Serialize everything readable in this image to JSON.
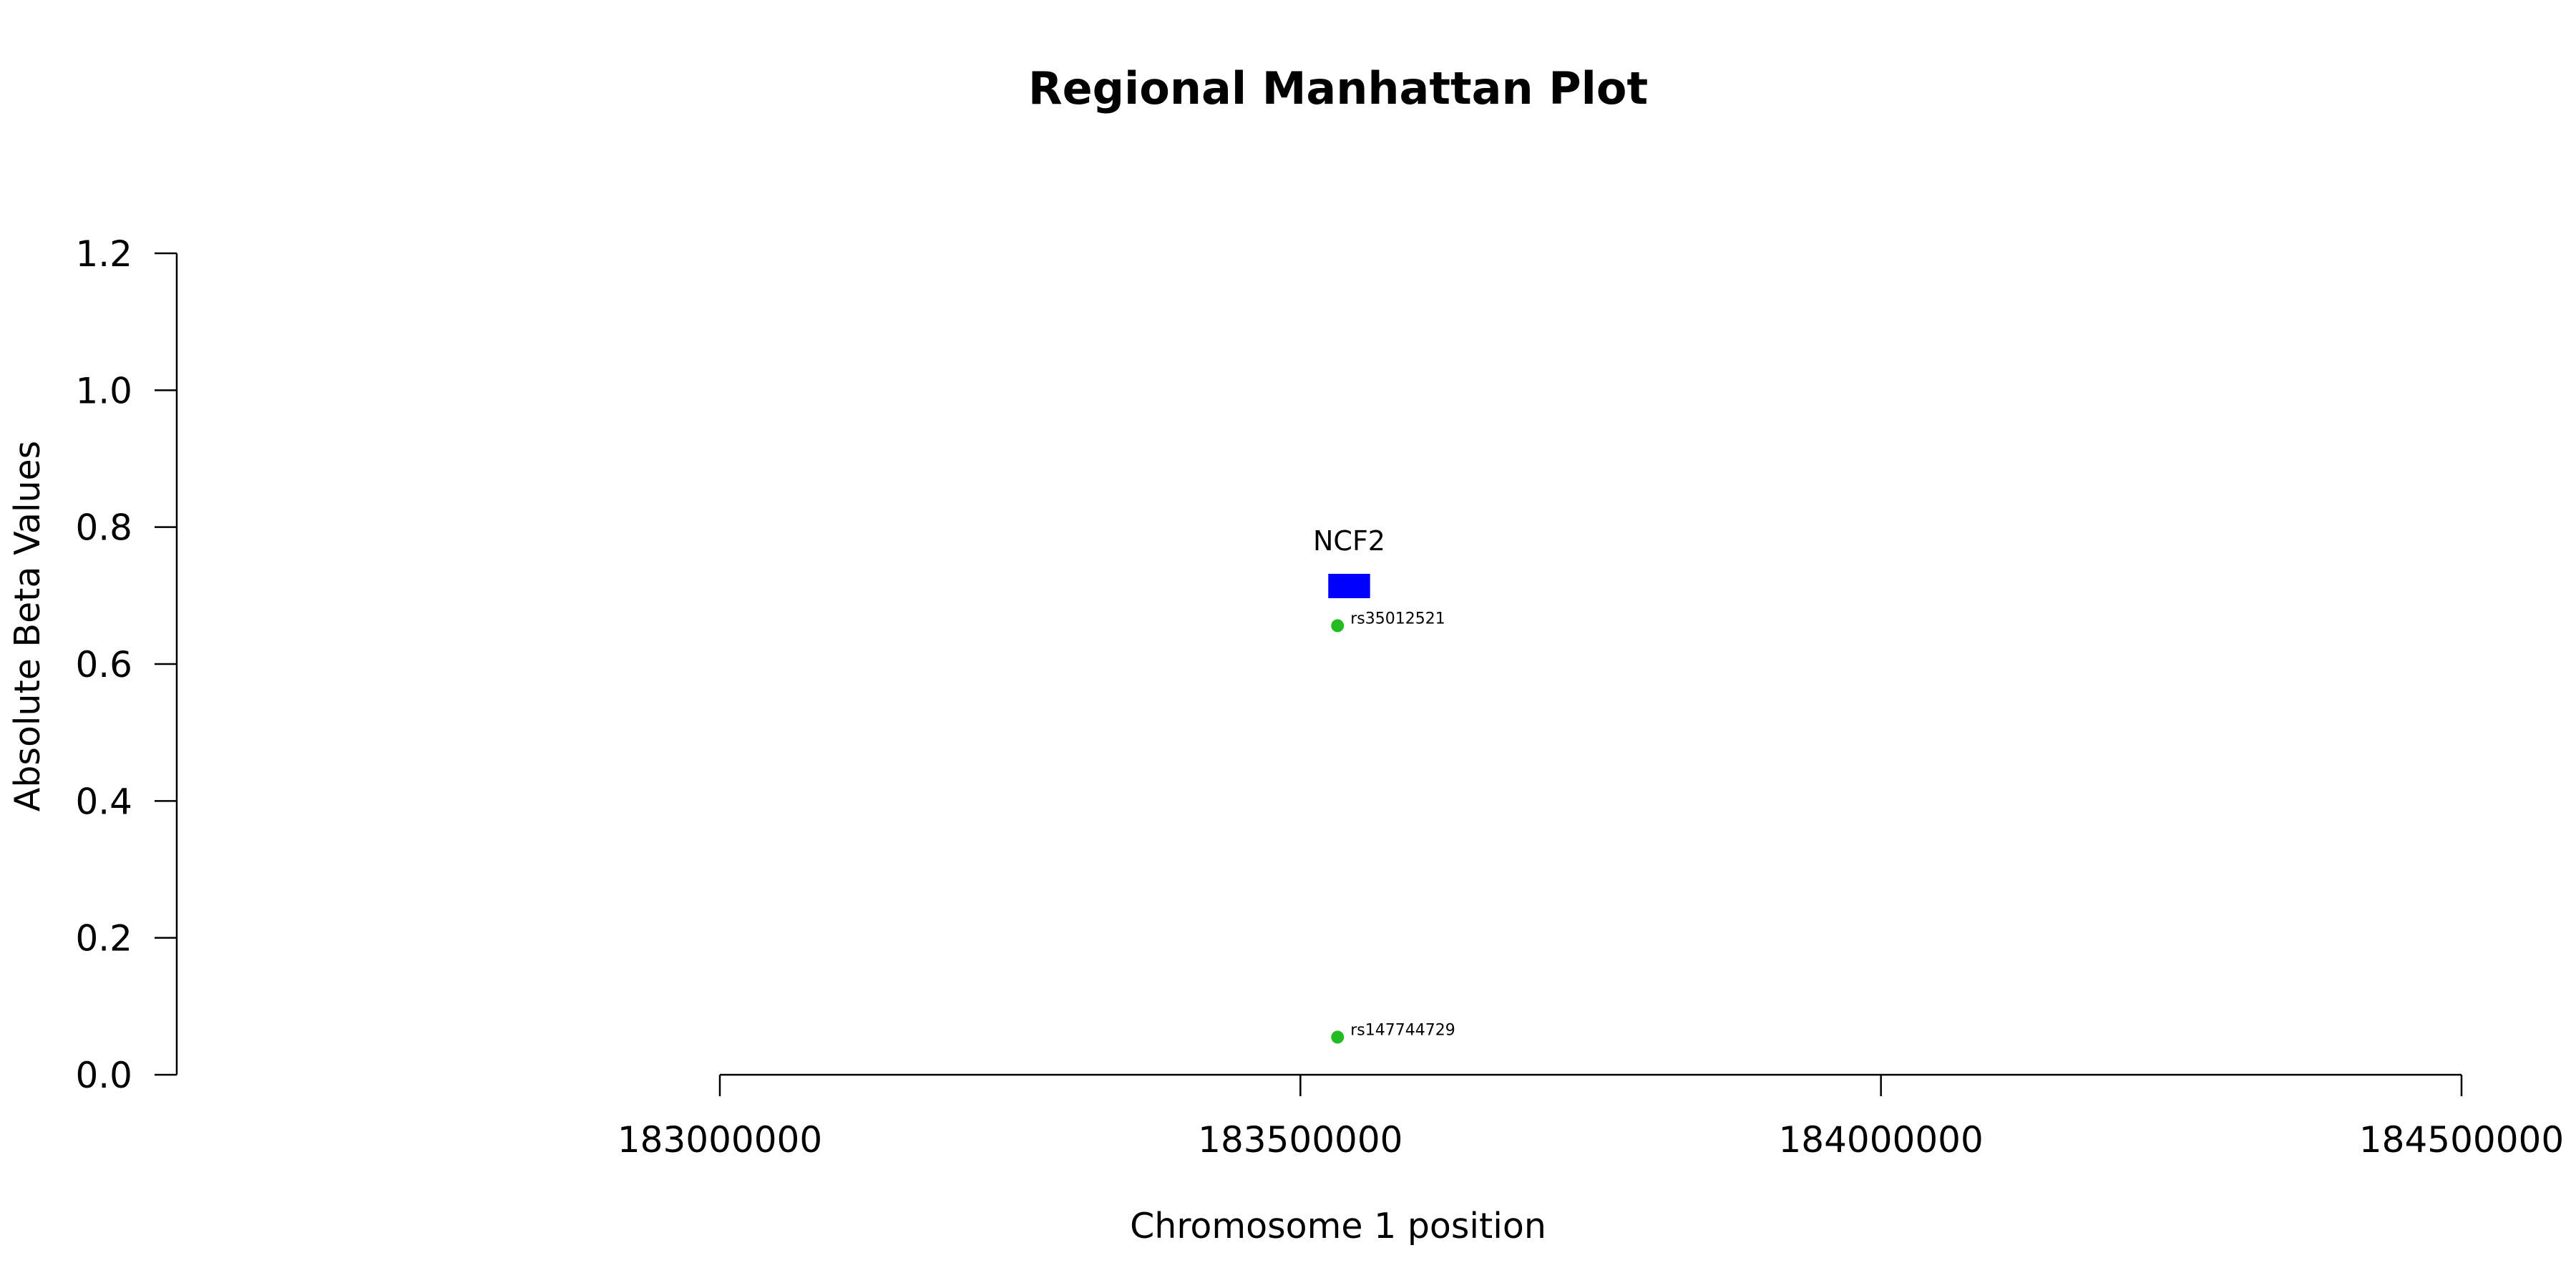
{
  "chart_data": {
    "type": "scatter",
    "title": "Regional Manhattan Plot",
    "xlabel": "Chromosome 1 position",
    "ylabel": "Absolute Beta Values",
    "xlim": [
      183000000,
      184500000
    ],
    "ylim": [
      0.0,
      1.2
    ],
    "x_ticks": [
      "183000000",
      "183500000",
      "184000000",
      "184500000"
    ],
    "x_tick_values": [
      183000000,
      183500000,
      184000000,
      184500000
    ],
    "y_ticks": [
      "0.0",
      "0.2",
      "0.4",
      "0.6",
      "0.8",
      "1.0",
      "1.2"
    ],
    "y_tick_values": [
      0.0,
      0.2,
      0.4,
      0.6,
      0.8,
      1.0,
      1.2
    ],
    "grid": false,
    "point_color": "#22bb22",
    "points": [
      {
        "label": "rs35012521",
        "x": 183532000,
        "y": 0.656
      },
      {
        "label": "rs147744729",
        "x": 183532000,
        "y": 0.055
      }
    ],
    "gene_color": "#0000ff",
    "genes": [
      {
        "name": "NCF2",
        "start": 183524000,
        "end": 183560000,
        "y": 0.714
      }
    ]
  }
}
